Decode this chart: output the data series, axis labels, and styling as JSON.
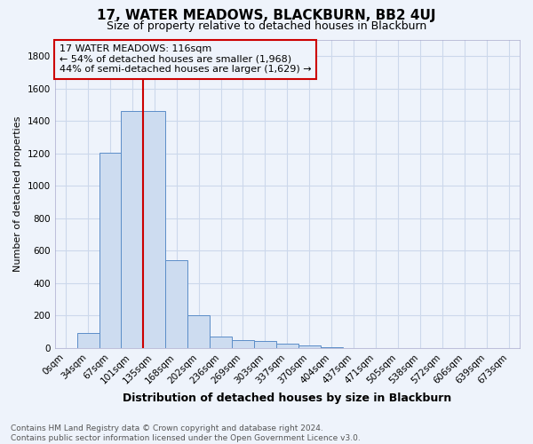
{
  "title": "17, WATER MEADOWS, BLACKBURN, BB2 4UJ",
  "subtitle": "Size of property relative to detached houses in Blackburn",
  "xlabel": "Distribution of detached houses by size in Blackburn",
  "ylabel": "Number of detached properties",
  "annotation_text": "17 WATER MEADOWS: 116sqm\n← 54% of detached houses are smaller (1,968)\n44% of semi-detached houses are larger (1,629) →",
  "footnote": "Contains HM Land Registry data © Crown copyright and database right 2024.\nContains public sector information licensed under the Open Government Licence v3.0.",
  "bar_color": "#cddcf0",
  "bar_edge_color": "#5b8dc8",
  "grid_color": "#ccd8eb",
  "annotation_box_color": "#cc0000",
  "vline_color": "#cc0000",
  "categories": [
    "0sqm",
    "34sqm",
    "67sqm",
    "101sqm",
    "135sqm",
    "168sqm",
    "202sqm",
    "236sqm",
    "269sqm",
    "303sqm",
    "337sqm",
    "370sqm",
    "404sqm",
    "437sqm",
    "471sqm",
    "505sqm",
    "538sqm",
    "572sqm",
    "606sqm",
    "639sqm",
    "673sqm"
  ],
  "values": [
    0,
    95,
    1205,
    1460,
    1460,
    540,
    200,
    70,
    50,
    42,
    28,
    15,
    5,
    1,
    0,
    0,
    0,
    0,
    0,
    0,
    0
  ],
  "ylim": [
    0,
    1900
  ],
  "yticks": [
    0,
    200,
    400,
    600,
    800,
    1000,
    1200,
    1400,
    1600,
    1800
  ],
  "vline_pos": 3.5,
  "figsize": [
    6.0,
    5.0
  ],
  "dpi": 100,
  "bg_color": "#eef3fb",
  "title_fontsize": 11,
  "subtitle_fontsize": 9,
  "xlabel_fontsize": 9,
  "ylabel_fontsize": 8,
  "tick_fontsize": 7.5,
  "annotation_fontsize": 8
}
